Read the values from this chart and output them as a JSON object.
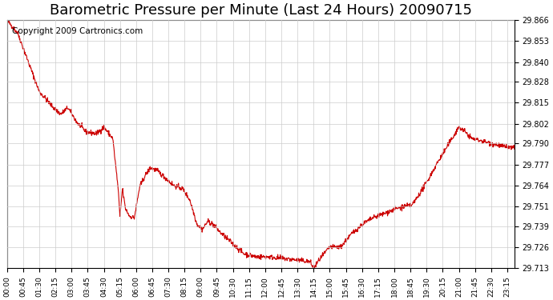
{
  "title": "Barometric Pressure per Minute (Last 24 Hours) 20090715",
  "copyright": "Copyright 2009 Cartronics.com",
  "line_color": "#cc0000",
  "background_color": "#ffffff",
  "grid_color": "#cccccc",
  "yticks": [
    29.713,
    29.726,
    29.739,
    29.751,
    29.764,
    29.777,
    29.79,
    29.802,
    29.815,
    29.828,
    29.84,
    29.853,
    29.866
  ],
  "xtick_labels": [
    "00:00",
    "00:45",
    "01:30",
    "02:15",
    "03:00",
    "03:45",
    "04:30",
    "05:15",
    "06:00",
    "06:45",
    "07:30",
    "08:15",
    "09:00",
    "09:45",
    "10:30",
    "11:15",
    "12:00",
    "12:45",
    "13:30",
    "14:15",
    "15:00",
    "15:45",
    "16:30",
    "17:15",
    "18:00",
    "18:45",
    "19:30",
    "20:15",
    "21:00",
    "21:45",
    "22:30",
    "23:15"
  ],
  "ymin": 29.713,
  "ymax": 29.866,
  "title_fontsize": 13,
  "copyright_fontsize": 7.5,
  "key_x": [
    0,
    30,
    60,
    90,
    110,
    130,
    150,
    170,
    195,
    220,
    250,
    270,
    295,
    310,
    315,
    322,
    330,
    342,
    355,
    370,
    385,
    400,
    420,
    445,
    465,
    490,
    510,
    530,
    545,
    560,
    575,
    595,
    625,
    660,
    695,
    730,
    770,
    810,
    845,
    855,
    870,
    900,
    930,
    960,
    990,
    1020,
    1055,
    1090,
    1130,
    1165,
    1200,
    1230,
    1260,
    1278,
    1295,
    1315,
    1350,
    1385,
    1415
  ],
  "key_y": [
    29.866,
    29.858,
    29.84,
    29.822,
    29.817,
    29.812,
    29.808,
    29.812,
    29.803,
    29.797,
    29.796,
    29.8,
    29.793,
    29.762,
    29.745,
    29.762,
    29.75,
    29.745,
    29.744,
    29.763,
    29.77,
    29.775,
    29.773,
    29.768,
    29.764,
    29.762,
    29.755,
    29.74,
    29.737,
    29.742,
    29.74,
    29.735,
    29.729,
    29.722,
    29.72,
    29.72,
    29.719,
    29.718,
    29.717,
    29.713,
    29.718,
    29.726,
    29.726,
    29.734,
    29.74,
    29.744,
    29.747,
    29.75,
    29.752,
    29.764,
    29.778,
    29.789,
    29.8,
    29.797,
    29.793,
    29.792,
    29.79,
    29.788,
    29.787
  ]
}
